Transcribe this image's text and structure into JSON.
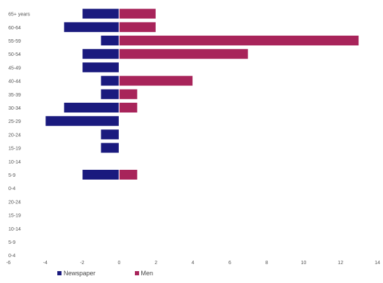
{
  "chart_data": {
    "type": "bar",
    "orientation": "horizontal",
    "stacking": "diverging",
    "categories": [
      "65+ years",
      "60-64",
      "55-59",
      "50-54",
      "45-49",
      "40-44",
      "35-39",
      "30-34",
      "25-29",
      "20-24",
      "15-19",
      "10-14",
      "5-9",
      "0-4",
      "20-24",
      "15-19",
      "10-14",
      "5-9",
      "0-4"
    ],
    "series": [
      {
        "name": "Newspaper",
        "color": "#1a1a7e",
        "values": [
          -2,
          -3,
          -1,
          -2,
          -2,
          -1,
          -1,
          -3,
          -4,
          -1,
          -1,
          0,
          -2,
          0,
          0,
          0,
          0,
          0,
          0
        ]
      },
      {
        "name": "Men",
        "color": "#a8245a",
        "values": [
          2,
          2,
          13,
          7,
          0,
          4,
          1,
          1,
          0,
          0,
          0,
          0,
          1,
          0,
          0,
          0,
          0,
          0,
          0
        ]
      }
    ],
    "x_ticks": [
      "-6",
      "-4",
      "-2",
      "0",
      "2",
      "4",
      "6",
      "8",
      "10",
      "12",
      "14"
    ],
    "xlim": [
      -6,
      14
    ],
    "grid": false,
    "legend_position": "bottom-left"
  }
}
